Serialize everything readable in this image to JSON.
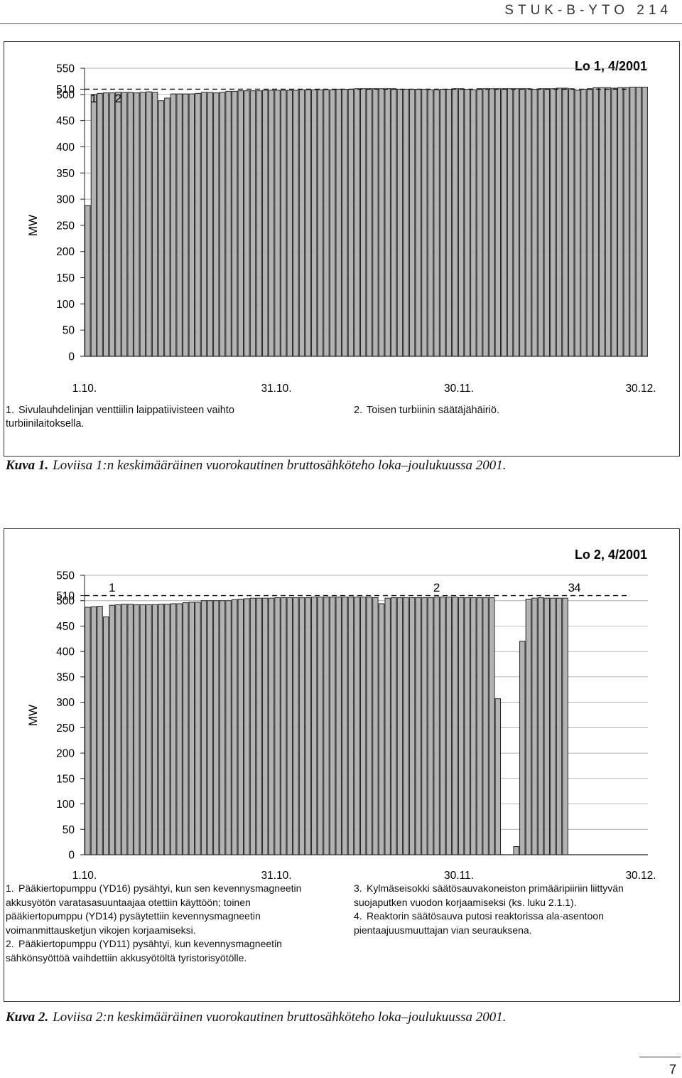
{
  "header": {
    "series": "STUK-B-YTO 214"
  },
  "charts": [
    {
      "id": "lo1",
      "title": "Lo 1, 4/2001",
      "ylabel": "MW",
      "ylim": [
        0,
        550
      ],
      "ytick_labels": [
        "0",
        "50",
        "100",
        "150",
        "200",
        "250",
        "300",
        "350",
        "400",
        "450",
        "500",
        "510",
        "550"
      ],
      "xtick_labels": [
        "1.10.",
        "31.10.",
        "30.11.",
        "30.12."
      ],
      "reference_line": 510,
      "event_markers": [
        {
          "label": "1",
          "day": 1
        },
        {
          "label": "2",
          "day": 5
        }
      ],
      "values": [
        288,
        500,
        502,
        503,
        503,
        504,
        504,
        504,
        503,
        504,
        505,
        504,
        488,
        493,
        501,
        501,
        501,
        501,
        502,
        504,
        504,
        503,
        504,
        506,
        506,
        507,
        507,
        507,
        507,
        508,
        508,
        508,
        508,
        508,
        508,
        509,
        509,
        509,
        509,
        509,
        509,
        510,
        510,
        510,
        511,
        511,
        511,
        511,
        511,
        511,
        511,
        510,
        510,
        510,
        510,
        510,
        509,
        509,
        510,
        510,
        511,
        511,
        510,
        509,
        511,
        511,
        511,
        511,
        511,
        511,
        511,
        511,
        511,
        510,
        511,
        511,
        511,
        512,
        512,
        511,
        508,
        510,
        511,
        513,
        513,
        513,
        512,
        513,
        513,
        514,
        514,
        514
      ],
      "notes": [
        {
          "num": "1.",
          "text": "Sivulauhdelinjan venttiilin laippatiivisteen vaihto turbiinilaitoksella."
        },
        {
          "num": "2.",
          "text": "Toisen turbiinin säätäjähäiriö."
        }
      ]
    },
    {
      "id": "lo2",
      "title": "Lo 2, 4/2001",
      "ylabel": "MW",
      "ylim": [
        0,
        550
      ],
      "ytick_labels": [
        "0",
        "50",
        "100",
        "150",
        "200",
        "250",
        "300",
        "350",
        "400",
        "450",
        "500",
        "510",
        "550"
      ],
      "xtick_labels": [
        "1.10.",
        "31.10.",
        "30.11.",
        "30.12."
      ],
      "reference_line": 510,
      "event_markers": [
        {
          "label": "1",
          "day": 4
        },
        {
          "label": "2",
          "day": 57
        },
        {
          "label": "3",
          "day": 79
        },
        {
          "label": "4",
          "day": 80
        }
      ],
      "values": [
        487,
        488,
        489,
        468,
        491,
        492,
        493,
        493,
        492,
        492,
        492,
        492,
        493,
        493,
        494,
        494,
        496,
        497,
        497,
        500,
        500,
        500,
        500,
        500,
        502,
        503,
        504,
        505,
        505,
        505,
        505,
        506,
        506,
        506,
        506,
        506,
        506,
        507,
        507,
        507,
        507,
        507,
        507,
        507,
        507,
        507,
        507,
        506,
        494,
        505,
        506,
        506,
        506,
        506,
        506,
        506,
        506,
        507,
        507,
        507,
        507,
        506,
        506,
        506,
        506,
        506,
        506,
        307,
        0,
        0,
        16,
        420,
        503,
        505,
        506,
        505,
        505,
        505,
        505
      ],
      "notes_left": [
        {
          "num": "1.",
          "text": "Pääkiertopumppu (YD16) pysähtyi, kun sen kevennysmagneetin akkusyötön varatasasuuntaajaa otettiin käyttöön; toinen pääkiertopumppu (YD14) pysäytettiin kevennysmagneetin voimanmittausketjun vikojen korjaamiseksi."
        },
        {
          "num": "2.",
          "text": "Pääkiertopumppu (YD11) pysähtyi, kun kevennysmagneetin sähkönsyöttöä vaihdettiin akkusyötöltä tyristorisyötölle."
        }
      ],
      "notes_right": [
        {
          "num": "3.",
          "text": "Kylmäseisokki säätösauvakoneiston primääripiiriin liittyvän suojaputken vuodon korjaamiseksi (ks. luku 2.1.1)."
        },
        {
          "num": "4.",
          "text": "Reaktorin säätösauva putosi reaktorissa ala-asentoon pientaajuusmuuttajan vian seurauksena."
        }
      ]
    }
  ],
  "captions": [
    {
      "lead": "Kuva 1.",
      "text": "Loviisa 1:n keskimääräinen vuorokautinen bruttosähköteho loka–joulukuussa 2001."
    },
    {
      "lead": "Kuva 2.",
      "text": "Loviisa 2:n keskimääräinen vuorokautinen bruttosähköteho loka–joulukuussa 2001."
    }
  ],
  "page": {
    "number": "7"
  },
  "colors": {
    "bar_fill": "#b3b3b3",
    "bar_stroke": "#222222",
    "grid": "#999999"
  },
  "chart_data": [
    {
      "type": "bar",
      "title": "Lo 1, 4/2001",
      "xlabel": "",
      "ylabel": "MW",
      "ylim": [
        0,
        550
      ],
      "x_ticks": [
        "1.10.",
        "31.10.",
        "30.11.",
        "30.12."
      ],
      "series": [
        {
          "values": [
            288,
            500,
            502,
            503,
            503,
            504,
            504,
            504,
            503,
            504,
            505,
            504,
            488,
            493,
            501,
            501,
            501,
            501,
            502,
            504,
            504,
            503,
            504,
            506,
            506,
            507,
            507,
            507,
            507,
            508,
            508,
            508,
            508,
            508,
            508,
            509,
            509,
            509,
            509,
            509,
            509,
            510,
            510,
            510,
            511,
            511,
            511,
            511,
            511,
            511,
            511,
            510,
            510,
            510,
            510,
            510,
            509,
            509,
            510,
            510,
            511,
            511,
            510,
            509,
            511,
            511,
            511,
            511,
            511,
            511,
            511,
            511,
            511,
            510,
            511,
            511,
            511,
            512,
            512,
            511,
            508,
            510,
            511,
            513,
            513,
            513,
            512,
            513,
            513,
            514,
            514,
            514
          ]
        }
      ]
    },
    {
      "type": "bar",
      "title": "Lo 2, 4/2001",
      "xlabel": "",
      "ylabel": "MW",
      "ylim": [
        0,
        550
      ],
      "x_ticks": [
        "1.10.",
        "31.10.",
        "30.11.",
        "30.12."
      ],
      "series": [
        {
          "values": [
            487,
            488,
            489,
            468,
            491,
            492,
            493,
            493,
            492,
            492,
            492,
            492,
            493,
            493,
            494,
            494,
            496,
            497,
            497,
            500,
            500,
            500,
            500,
            500,
            502,
            503,
            504,
            505,
            505,
            505,
            505,
            506,
            506,
            506,
            506,
            506,
            506,
            507,
            507,
            507,
            507,
            507,
            507,
            507,
            507,
            507,
            507,
            506,
            494,
            505,
            506,
            506,
            506,
            506,
            506,
            506,
            506,
            507,
            507,
            507,
            507,
            506,
            506,
            506,
            506,
            506,
            506,
            307,
            0,
            0,
            16,
            420,
            503,
            505,
            506,
            505,
            505,
            505,
            505
          ]
        }
      ]
    }
  ]
}
